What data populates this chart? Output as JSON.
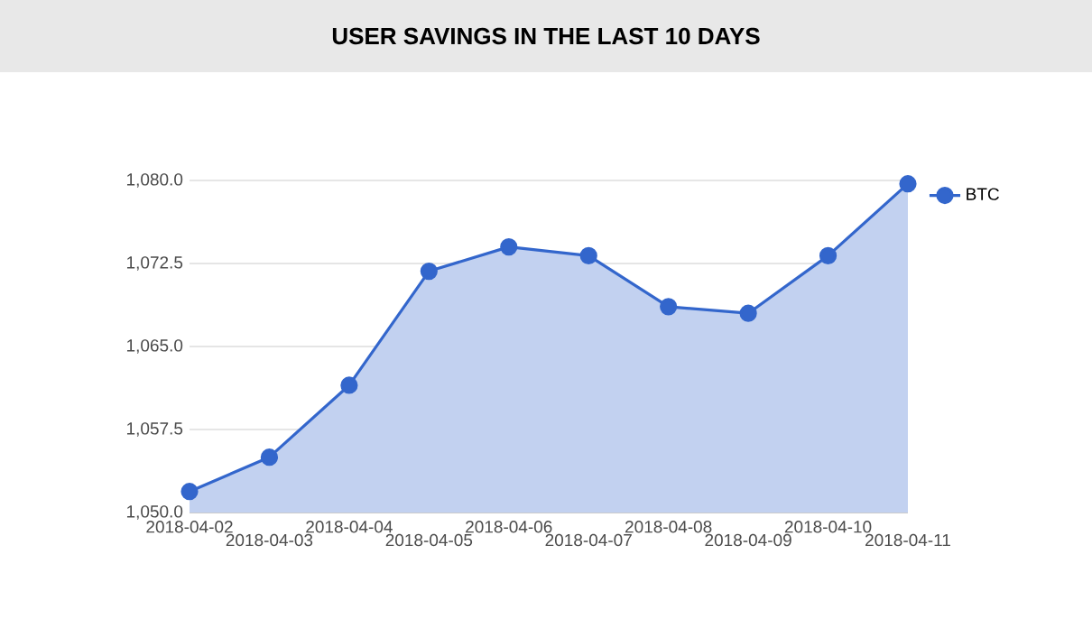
{
  "chart_data": {
    "type": "area",
    "title": "USER SAVINGS IN THE LAST 10 DAYS",
    "categories": [
      "2018-04-02",
      "2018-04-03",
      "2018-04-04",
      "2018-04-05",
      "2018-04-06",
      "2018-04-07",
      "2018-04-08",
      "2018-04-09",
      "2018-04-10",
      "2018-04-11"
    ],
    "series": [
      {
        "name": "BTC",
        "color": "#3366cc",
        "values": [
          1051.9,
          1055.0,
          1061.5,
          1071.8,
          1074.0,
          1073.2,
          1068.6,
          1068.0,
          1073.2,
          1079.7
        ]
      }
    ],
    "ylim": [
      1050,
      1080
    ],
    "yticks": [
      {
        "value": 1050,
        "label": "1,050.0"
      },
      {
        "value": 1057.5,
        "label": "1,057.5"
      },
      {
        "value": 1065,
        "label": "1,065.0"
      },
      {
        "value": 1072.5,
        "label": "1,072.5"
      },
      {
        "value": 1080,
        "label": "1,080.0"
      }
    ],
    "grid": "y",
    "legend": "right",
    "marker": "circle"
  }
}
